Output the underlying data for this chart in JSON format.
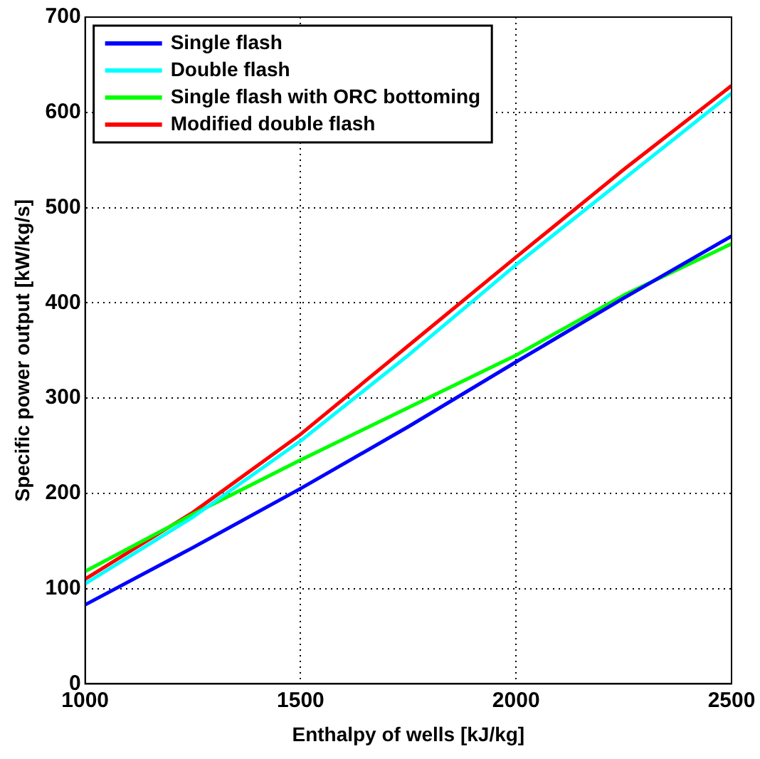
{
  "chart_data": {
    "type": "line",
    "xlabel": "Enthalpy of wells [kJ/kg]",
    "ylabel": "Specific power output [kW/kg/s]",
    "x": [
      1000,
      1250,
      1500,
      1750,
      2000,
      2250,
      2500
    ],
    "series": [
      {
        "name": "Single flash",
        "color": "#0000ff",
        "values": [
          83,
          143,
          205,
          270,
          338,
          405,
          470
        ]
      },
      {
        "name": "Double flash",
        "color": "#00ffff",
        "values": [
          105,
          175,
          255,
          345,
          440,
          530,
          620
        ]
      },
      {
        "name": "Single flash with ORC bottoming",
        "color": "#00ff00",
        "values": [
          118,
          178,
          235,
          290,
          345,
          408,
          462
        ]
      },
      {
        "name": "Modified double flash",
        "color": "#ff0000",
        "values": [
          110,
          180,
          262,
          355,
          448,
          540,
          628
        ]
      }
    ],
    "xlim": [
      1000,
      2500
    ],
    "xticks": [
      1000,
      1500,
      2000,
      2500
    ],
    "ylim": [
      0,
      700
    ],
    "yticks": [
      0,
      100,
      200,
      300,
      400,
      500,
      600,
      700
    ],
    "grid": true,
    "legend": "top left",
    "marker": "none",
    "line_style": "solid"
  }
}
